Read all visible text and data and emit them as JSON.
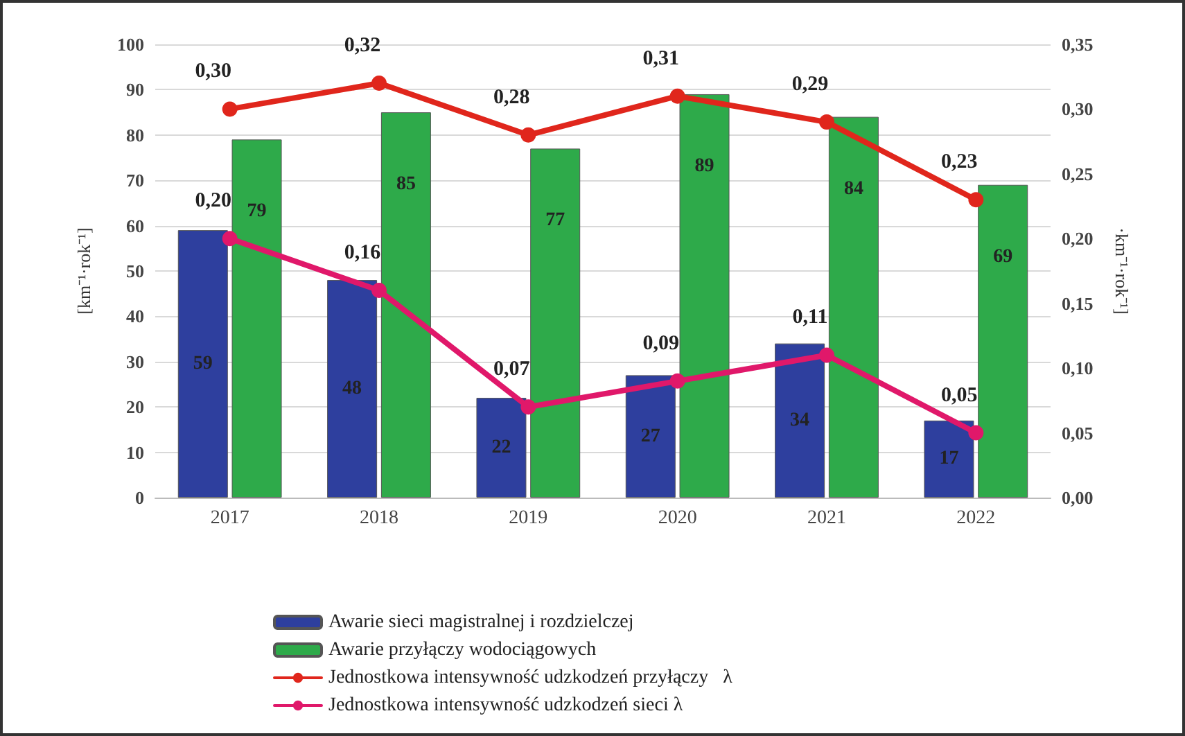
{
  "chart_data": {
    "type": "bar",
    "categories": [
      "2017",
      "2018",
      "2019",
      "2020",
      "2021",
      "2022"
    ],
    "ylabel": "[km⁻¹·rok⁻¹]",
    "y2label": "·km⁻¹·rok⁻¹]",
    "ylim": [
      0,
      100
    ],
    "yticks": [
      0,
      10,
      20,
      30,
      40,
      50,
      60,
      70,
      80,
      90,
      100
    ],
    "y2lim": [
      0,
      0.35
    ],
    "y2ticks": [
      {
        "value": 0,
        "label": "0,00"
      },
      {
        "value": 0.05,
        "label": "0,05"
      },
      {
        "value": 0.1,
        "label": "0,10"
      },
      {
        "value": 0.15,
        "label": "0,15"
      },
      {
        "value": 0.2,
        "label": "0,20"
      },
      {
        "value": 0.25,
        "label": "0,25"
      },
      {
        "value": 0.3,
        "label": "0,30"
      },
      {
        "value": 0.35,
        "label": "0,35"
      }
    ],
    "series": [
      {
        "name": "Awarie sieci magistralnej i rozdzielczej",
        "color": "#2e3f9e",
        "values": [
          59,
          48,
          22,
          27,
          34,
          17
        ],
        "value_labels": [
          "59",
          "48",
          "22",
          "27",
          "34",
          "17"
        ]
      },
      {
        "name": "Awarie przyłączy wodociągowych",
        "color": "#2eaa4a",
        "values": [
          79,
          85,
          77,
          89,
          84,
          69
        ],
        "value_labels": [
          "79",
          "85",
          "77",
          "89",
          "84",
          "69"
        ]
      },
      {
        "name": "Jednostkowa intensywność udzkodzeń przyłączy   λ",
        "type": "line",
        "axis": "y2",
        "color": "#e0261c",
        "values": [
          0.3,
          0.32,
          0.28,
          0.31,
          0.29,
          0.23
        ],
        "value_labels": [
          "0,30",
          "0,32",
          "0,28",
          "0,31",
          "0,29",
          "0,23"
        ]
      },
      {
        "name": "Jednostkowa intensywność udzkodzeń sieci λ",
        "type": "line",
        "axis": "y2",
        "color": "#e0186a",
        "values": [
          0.2,
          0.16,
          0.07,
          0.09,
          0.11,
          0.05
        ],
        "value_labels": [
          "0,20",
          "0,16",
          "0,07",
          "0,09",
          "0,11",
          "0,05"
        ]
      }
    ],
    "grid": "y",
    "legend": "bottom",
    "marker": "circle",
    "line_style": "solid"
  }
}
